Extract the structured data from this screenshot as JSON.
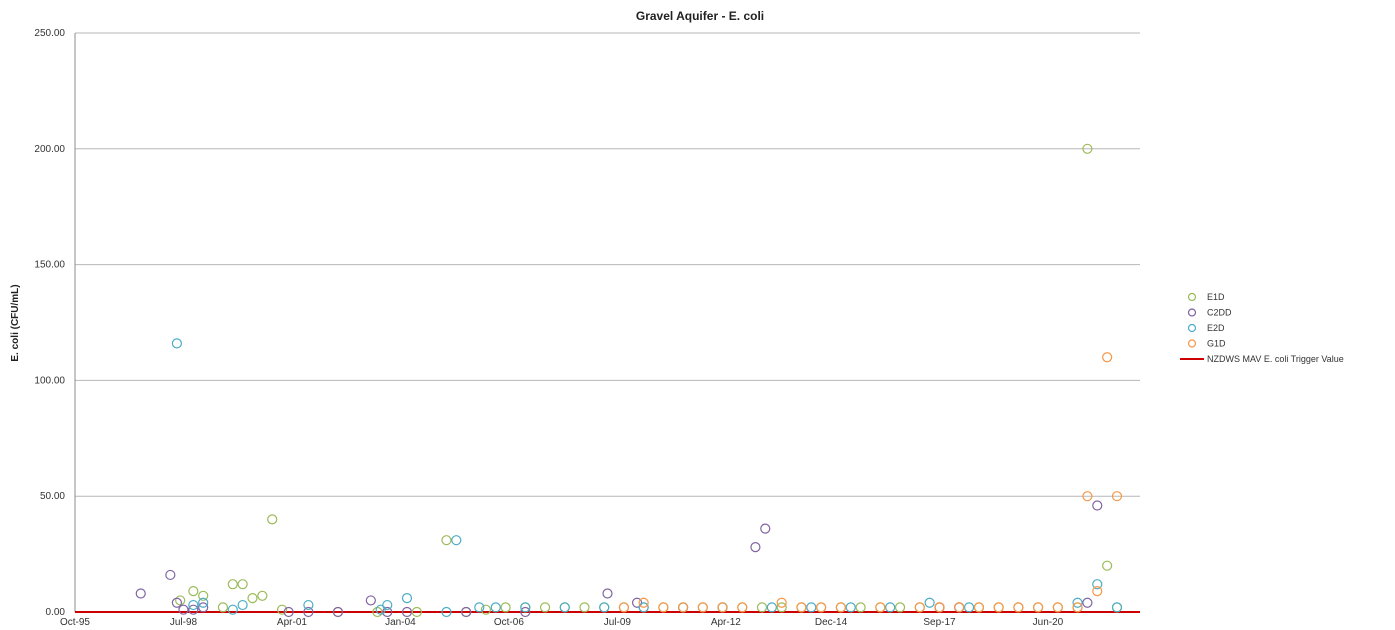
{
  "chart_data": {
    "type": "scatter",
    "title": "Gravel Aquifer - E. coli",
    "xlabel": "",
    "ylabel": "E. coli (CFU/mL)",
    "ylim": [
      0,
      250
    ],
    "yticks": [
      "0.00",
      "50.00",
      "100.00",
      "150.00",
      "200.00",
      "250.00"
    ],
    "xlim": [
      "1995-10",
      "2022-10"
    ],
    "xticks": [
      "Oct-95",
      "Jul-98",
      "Apr-01",
      "Jan-04",
      "Oct-06",
      "Jul-09",
      "Apr-12",
      "Dec-14",
      "Sep-17",
      "Jun-20"
    ],
    "grid": true,
    "legend_position": "right",
    "series": [
      {
        "name": "E1D",
        "color": "#9bbb59",
        "points": [
          [
            "1998-06",
            5
          ],
          [
            "1998-10",
            9
          ],
          [
            "1999-01",
            7
          ],
          [
            "1999-07",
            2
          ],
          [
            "1999-10",
            12
          ],
          [
            "2000-01",
            12
          ],
          [
            "2000-04",
            6
          ],
          [
            "2000-07",
            7
          ],
          [
            "2000-10",
            40
          ],
          [
            "2001-01",
            1
          ],
          [
            "2002-06",
            0
          ],
          [
            "2003-06",
            0
          ],
          [
            "2004-06",
            0
          ],
          [
            "2005-03",
            31
          ],
          [
            "2005-09",
            0
          ],
          [
            "2006-03",
            1
          ],
          [
            "2006-09",
            2
          ],
          [
            "2007-03",
            2
          ],
          [
            "2007-09",
            2
          ],
          [
            "2008-03",
            2
          ],
          [
            "2008-09",
            2
          ],
          [
            "2009-03",
            2
          ],
          [
            "2009-09",
            2
          ],
          [
            "2010-03",
            2
          ],
          [
            "2010-09",
            2
          ],
          [
            "2011-03",
            2
          ],
          [
            "2011-09",
            2
          ],
          [
            "2012-03",
            2
          ],
          [
            "2012-09",
            2
          ],
          [
            "2013-03",
            2
          ],
          [
            "2013-09",
            2
          ],
          [
            "2014-03",
            2
          ],
          [
            "2014-09",
            2
          ],
          [
            "2015-03",
            2
          ],
          [
            "2015-09",
            2
          ],
          [
            "2016-03",
            2
          ],
          [
            "2016-09",
            2
          ],
          [
            "2017-03",
            2
          ],
          [
            "2017-09",
            2
          ],
          [
            "2018-03",
            2
          ],
          [
            "2018-09",
            2
          ],
          [
            "2019-03",
            2
          ],
          [
            "2019-09",
            2
          ],
          [
            "2020-03",
            2
          ],
          [
            "2020-09",
            2
          ],
          [
            "2021-03",
            2
          ],
          [
            "2021-06",
            200
          ],
          [
            "2021-12",
            20
          ],
          [
            "2022-03",
            2
          ]
        ]
      },
      {
        "name": "C2DD",
        "color": "#8064a2",
        "points": [
          [
            "1997-06",
            8
          ],
          [
            "1998-03",
            16
          ],
          [
            "1998-05",
            4
          ],
          [
            "1998-07",
            1
          ],
          [
            "1998-10",
            1
          ],
          [
            "1999-01",
            2
          ],
          [
            "2001-03",
            0
          ],
          [
            "2001-09",
            0
          ],
          [
            "2002-06",
            0
          ],
          [
            "2003-04",
            5
          ],
          [
            "2003-09",
            0
          ],
          [
            "2004-03",
            0
          ],
          [
            "2005-09",
            0
          ],
          [
            "2007-03",
            0
          ],
          [
            "2009-04",
            8
          ],
          [
            "2010-01",
            4
          ],
          [
            "2013-01",
            28
          ],
          [
            "2013-04",
            36
          ],
          [
            "2017-09",
            2
          ],
          [
            "2018-03",
            2
          ],
          [
            "2021-06",
            4
          ],
          [
            "2021-09",
            46
          ]
        ]
      },
      {
        "name": "E2D",
        "color": "#4bacc6",
        "points": [
          [
            "1998-05",
            116
          ],
          [
            "1998-10",
            3
          ],
          [
            "1999-01",
            4
          ],
          [
            "1999-10",
            1
          ],
          [
            "2000-01",
            3
          ],
          [
            "2001-09",
            3
          ],
          [
            "2003-07",
            1
          ],
          [
            "2003-09",
            3
          ],
          [
            "2004-03",
            6
          ],
          [
            "2005-03",
            0
          ],
          [
            "2005-06",
            31
          ],
          [
            "2006-01",
            2
          ],
          [
            "2006-06",
            2
          ],
          [
            "2007-03",
            2
          ],
          [
            "2008-03",
            2
          ],
          [
            "2009-03",
            2
          ],
          [
            "2010-03",
            2
          ],
          [
            "2011-03",
            2
          ],
          [
            "2012-03",
            2
          ],
          [
            "2013-06",
            2
          ],
          [
            "2014-06",
            2
          ],
          [
            "2015-06",
            2
          ],
          [
            "2016-06",
            2
          ],
          [
            "2017-06",
            4
          ],
          [
            "2018-06",
            2
          ],
          [
            "2021-03",
            4
          ],
          [
            "2021-09",
            12
          ],
          [
            "2022-03",
            2
          ]
        ]
      },
      {
        "name": "G1D",
        "color": "#f79646",
        "points": [
          [
            "2009-09",
            2
          ],
          [
            "2010-03",
            4
          ],
          [
            "2010-09",
            2
          ],
          [
            "2011-03",
            2
          ],
          [
            "2011-09",
            2
          ],
          [
            "2012-03",
            2
          ],
          [
            "2012-09",
            2
          ],
          [
            "2013-09",
            4
          ],
          [
            "2014-03",
            2
          ],
          [
            "2014-09",
            2
          ],
          [
            "2015-03",
            2
          ],
          [
            "2016-03",
            2
          ],
          [
            "2017-03",
            2
          ],
          [
            "2017-09",
            2
          ],
          [
            "2018-03",
            2
          ],
          [
            "2018-09",
            2
          ],
          [
            "2019-03",
            2
          ],
          [
            "2019-09",
            2
          ],
          [
            "2020-03",
            2
          ],
          [
            "2020-09",
            2
          ],
          [
            "2021-03",
            2
          ],
          [
            "2021-06",
            50
          ],
          [
            "2021-09",
            9
          ],
          [
            "2021-12",
            110
          ],
          [
            "2022-03",
            50
          ]
        ]
      }
    ],
    "reference_line": {
      "name": "NZDWS MAV E. coli Trigger Value",
      "value": 0,
      "color": "#cc0000"
    },
    "legend": [
      "E1D",
      "C2DD",
      "E2D",
      "G1D",
      "NZDWS MAV E. coli Trigger Value"
    ]
  }
}
